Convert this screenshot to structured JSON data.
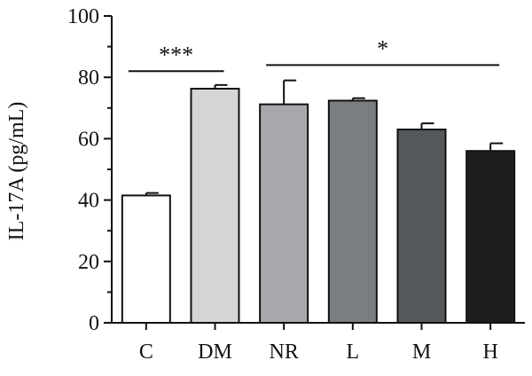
{
  "chart_data": {
    "type": "bar",
    "ylabel": "IL-17A (pg/mL)",
    "ylim": [
      0,
      100
    ],
    "yticks": [
      0,
      20,
      40,
      60,
      80,
      100
    ],
    "categories": [
      "C",
      "DM",
      "NR",
      "L",
      "M",
      "H"
    ],
    "values": [
      41.5,
      76.3,
      71.2,
      72.4,
      63.0,
      56.0
    ],
    "errors": [
      0.8,
      1.2,
      7.8,
      0.8,
      2.0,
      2.5
    ],
    "colors": [
      "#ffffff",
      "#d4d5d7",
      "#a6a8ac",
      "#7b7e81",
      "#55585a",
      "#1e1e1f"
    ],
    "grid": false,
    "significance": [
      {
        "label": "***",
        "from": "C",
        "to": "DM",
        "y": 82
      },
      {
        "label": "*",
        "from": "NR",
        "to": "H",
        "y": 84
      }
    ]
  }
}
